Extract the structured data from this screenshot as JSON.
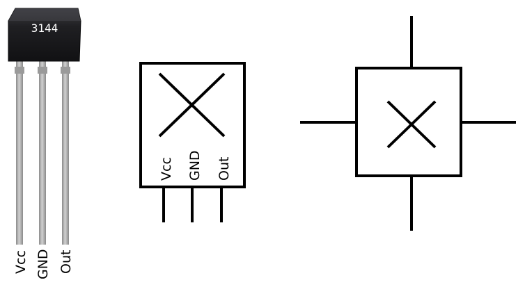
{
  "sensor_photo": {
    "marking": "3144",
    "pins": [
      "Vcc",
      "GND",
      "Out"
    ]
  },
  "package_symbol": {
    "pins": [
      "Vcc",
      "GND",
      "Out"
    ]
  },
  "colors": {
    "line": "#000000",
    "background": "#ffffff",
    "body": "#1c1c1e",
    "body_top": "#3a3a3e",
    "lead": "#a9a9a9"
  }
}
